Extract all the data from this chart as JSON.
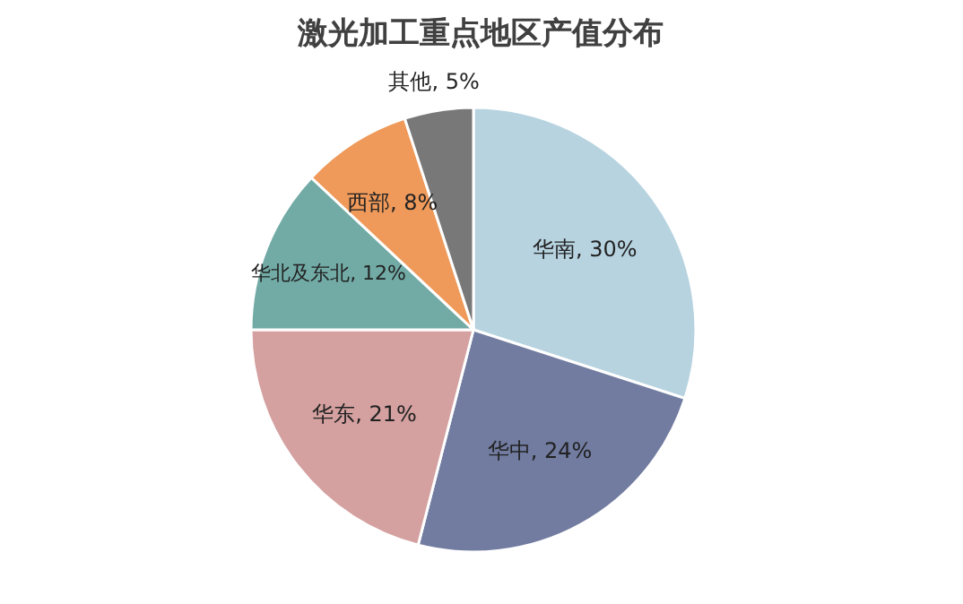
{
  "chart_data": {
    "type": "pie",
    "title": "激光加工重点地区产值分布",
    "categories": [
      "华南",
      "华中",
      "华东",
      "华北及东北",
      "西部",
      "其他"
    ],
    "values": [
      30,
      24,
      21,
      12,
      8,
      5
    ],
    "value_labels": [
      "30%",
      "24%",
      "21%",
      "12%",
      "8%",
      "5%"
    ],
    "colors": [
      "#b7d3e0",
      "#717ca0",
      "#d4a0a0",
      "#72aba6",
      "#ef9a5a",
      "#787878"
    ]
  }
}
